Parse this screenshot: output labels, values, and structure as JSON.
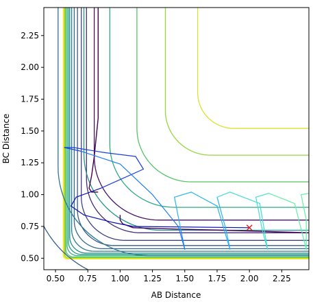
{
  "chart_data": {
    "type": "contour",
    "xlabel": "AB Distance",
    "ylabel": "BC Distance",
    "xlim": [
      0.41,
      2.46
    ],
    "ylim": [
      0.41,
      2.47
    ],
    "xticks": [
      0.5,
      0.75,
      1.0,
      1.25,
      1.5,
      1.75,
      2.0,
      2.25
    ],
    "xtick_labels": [
      "0.50",
      "0.75",
      "1.00",
      "1.25",
      "1.50",
      "1.75",
      "2.00",
      "2.25"
    ],
    "yticks": [
      0.5,
      0.75,
      1.0,
      1.25,
      1.5,
      1.75,
      2.0,
      2.25
    ],
    "ytick_labels": [
      "0.50",
      "0.75",
      "1.00",
      "1.25",
      "1.50",
      "1.75",
      "2.00",
      "2.25"
    ],
    "colormap": [
      "#440154",
      "#46327e",
      "#365c8d",
      "#277f8e",
      "#1fa187",
      "#4ac16d",
      "#a0da39",
      "#fde725"
    ],
    "contour_levels": [
      {
        "a": 0.8,
        "b": 0.8,
        "t": 0.5
      },
      {
        "a": 0.74,
        "b": 0.7,
        "t": 0.42
      },
      {
        "a": 0.7,
        "b": 0.64,
        "t": 0.34
      },
      {
        "a": 0.67,
        "b": 0.6,
        "t": 0.28
      },
      {
        "a": 0.645,
        "b": 0.575,
        "t": 0.22
      },
      {
        "a": 0.625,
        "b": 0.555,
        "t": 0.17
      },
      {
        "a": 0.61,
        "b": 0.54,
        "t": 0.13
      },
      {
        "a": 0.6,
        "b": 0.53,
        "t": 0.1
      },
      {
        "a": 0.59,
        "b": 0.52,
        "t": 0.08
      },
      {
        "a": 0.58,
        "b": 0.51,
        "t": 0.06
      },
      {
        "a": 0.575,
        "b": 0.505,
        "t": 0.05
      },
      {
        "a": 0.57,
        "b": 0.5,
        "t": 0.04
      },
      {
        "a": 0.565,
        "b": 0.497,
        "t": 0.035
      },
      {
        "a": 0.56,
        "b": 0.494,
        "t": 0.03
      }
    ],
    "extra_contours": [
      {
        "name": "left-valley-wall",
        "x": [
          0.83,
          0.83,
          0.8,
          0.78,
          0.76,
          0.78,
          0.83
        ],
        "y": [
          2.47,
          1.6,
          1.3,
          1.15,
          1.05,
          1.02,
          1.02
        ]
      },
      {
        "name": "lower-valley-wall",
        "x": [
          2.46,
          1.8,
          1.4,
          1.1,
          1.02,
          1.0,
          1.0
        ],
        "y": [
          0.7,
          0.72,
          0.73,
          0.74,
          0.77,
          0.8,
          0.84
        ]
      }
    ],
    "trajectory": {
      "x": [
        2.0,
        1.1,
        0.95,
        0.72,
        0.62,
        0.66,
        0.85,
        1.18,
        1.12,
        0.88,
        0.64,
        0.57,
        0.7,
        1.0,
        1.25,
        1.45,
        1.5,
        1.47,
        1.42,
        1.55,
        1.75,
        1.85,
        1.82,
        1.75,
        1.85,
        2.08,
        2.14,
        2.1,
        2.05,
        2.15,
        2.35,
        2.44,
        2.44,
        2.4,
        2.46
      ],
      "y": [
        0.74,
        0.75,
        0.78,
        0.84,
        0.91,
        0.98,
        1.05,
        1.2,
        1.3,
        1.33,
        1.37,
        1.37,
        1.34,
        1.24,
        1.0,
        0.75,
        0.57,
        0.72,
        0.98,
        1.02,
        0.91,
        0.57,
        0.72,
        0.98,
        1.02,
        0.93,
        0.57,
        0.72,
        0.98,
        1.01,
        0.93,
        0.57,
        0.8,
        1.0,
        1.01
      ]
    },
    "trajectory_colors": [
      "#0b0fb8",
      "#1a3fe0",
      "#1e7df5",
      "#26b3f0",
      "#3fe0d0",
      "#60f0a8"
    ],
    "marker": {
      "x": 2.0,
      "y": 0.74,
      "symbol": "x",
      "color": "#e41a1c"
    }
  }
}
